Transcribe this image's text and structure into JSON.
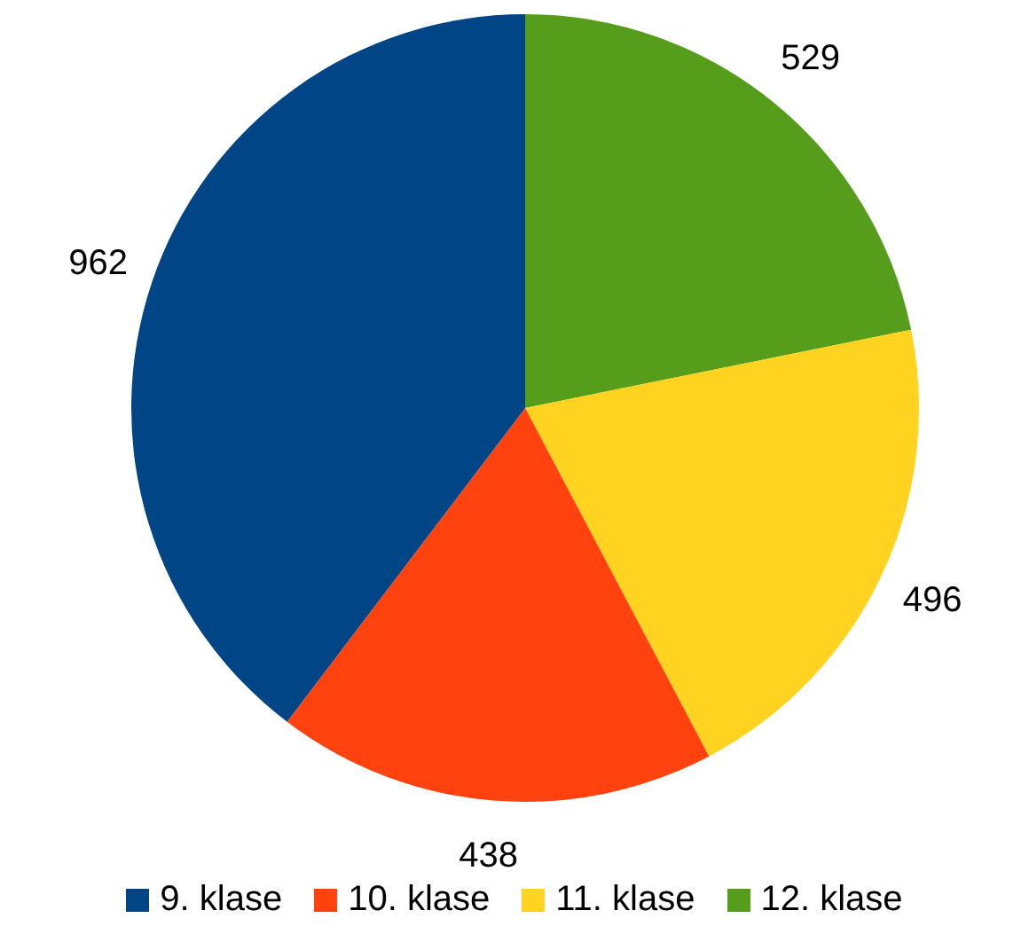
{
  "chart_data": {
    "type": "pie",
    "categories": [
      "9. klase",
      "10. klase",
      "11. klase",
      "12. klase"
    ],
    "values": [
      962,
      438,
      496,
      529
    ],
    "colors": [
      "#004586",
      "#ff420e",
      "#ffd320",
      "#579d1c"
    ],
    "data_labels": true,
    "legend": "bottom"
  }
}
